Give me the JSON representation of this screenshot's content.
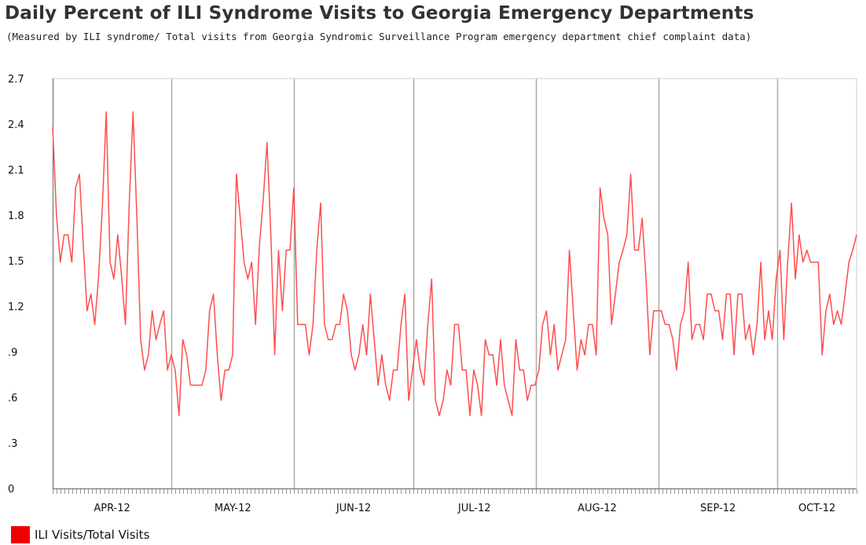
{
  "colors": {
    "series": "#ff4d4d",
    "swatch": "#ee0000",
    "grid": "#aaaaaa",
    "axis": "#666666",
    "background": "#ffffff"
  },
  "chart_data": {
    "type": "line",
    "title": "Daily Percent of ILI Syndrome Visits to Georgia Emergency Departments",
    "subtitle": "(Measured by ILI syndrome/ Total visits from Georgia Syndromic Surveillance Program emergency department chief complaint data)",
    "xlabel": "",
    "ylabel": "",
    "ylim": [
      0,
      2.7
    ],
    "yticks": [
      "0",
      ".3",
      ".6",
      ".9",
      "1.2",
      "1.5",
      "1.8",
      "2.1",
      "2.4",
      "2.7"
    ],
    "month_labels": [
      "APR-12",
      "MAY-12",
      "JUN-12",
      "JUL-12",
      "AUG-12",
      "SEP-12",
      "OCT-12"
    ],
    "x_start": "2012-04-01",
    "x_end": "2012-10-21",
    "grid": "vertical lines at month boundaries",
    "legend_position": "bottom-left",
    "series": [
      {
        "name": "ILI Visits/Total Visits",
        "values": [
          2.38,
          1.8,
          1.49,
          1.67,
          1.67,
          1.49,
          1.98,
          2.07,
          1.6,
          1.17,
          1.28,
          1.08,
          1.4,
          1.86,
          2.48,
          1.49,
          1.38,
          1.67,
          1.4,
          1.08,
          1.87,
          2.48,
          1.78,
          0.98,
          0.78,
          0.88,
          1.17,
          0.98,
          1.08,
          1.17,
          0.78,
          0.88,
          0.78,
          0.48,
          0.98,
          0.88,
          0.68,
          0.68,
          0.68,
          0.68,
          0.78,
          1.17,
          1.28,
          0.88,
          0.58,
          0.78,
          0.78,
          0.88,
          2.07,
          1.78,
          1.49,
          1.38,
          1.49,
          1.08,
          1.6,
          1.9,
          2.28,
          1.67,
          0.88,
          1.57,
          1.17,
          1.57,
          1.57,
          1.98,
          1.08,
          1.08,
          1.08,
          0.88,
          1.08,
          1.57,
          1.88,
          1.08,
          0.98,
          0.98,
          1.08,
          1.08,
          1.28,
          1.17,
          0.88,
          0.78,
          0.88,
          1.08,
          0.88,
          1.28,
          0.98,
          0.68,
          0.88,
          0.68,
          0.58,
          0.78,
          0.78,
          1.08,
          1.28,
          0.58,
          0.78,
          0.98,
          0.78,
          0.68,
          1.08,
          1.38,
          0.58,
          0.48,
          0.58,
          0.78,
          0.68,
          1.08,
          1.08,
          0.78,
          0.78,
          0.48,
          0.78,
          0.68,
          0.48,
          0.98,
          0.88,
          0.88,
          0.68,
          0.98,
          0.68,
          0.58,
          0.48,
          0.98,
          0.78,
          0.78,
          0.58,
          0.68,
          0.68,
          0.78,
          1.08,
          1.17,
          0.88,
          1.08,
          0.78,
          0.88,
          0.98,
          1.57,
          1.17,
          0.78,
          0.98,
          0.88,
          1.08,
          1.08,
          0.88,
          1.98,
          1.78,
          1.67,
          1.08,
          1.28,
          1.49,
          1.57,
          1.67,
          2.07,
          1.57,
          1.57,
          1.78,
          1.38,
          0.88,
          1.17,
          1.17,
          1.17,
          1.08,
          1.08,
          0.98,
          0.78,
          1.08,
          1.17,
          1.49,
          0.98,
          1.08,
          1.08,
          0.98,
          1.28,
          1.28,
          1.17,
          1.17,
          0.98,
          1.28,
          1.28,
          0.88,
          1.28,
          1.28,
          0.98,
          1.08,
          0.88,
          1.08,
          1.49,
          0.98,
          1.17,
          0.98,
          1.38,
          1.57,
          0.98,
          1.49,
          1.88,
          1.38,
          1.67,
          1.49,
          1.57,
          1.49,
          1.49,
          1.49,
          0.88,
          1.17,
          1.28,
          1.08,
          1.17,
          1.08,
          1.28,
          1.49,
          1.57,
          1.67
        ]
      }
    ]
  }
}
